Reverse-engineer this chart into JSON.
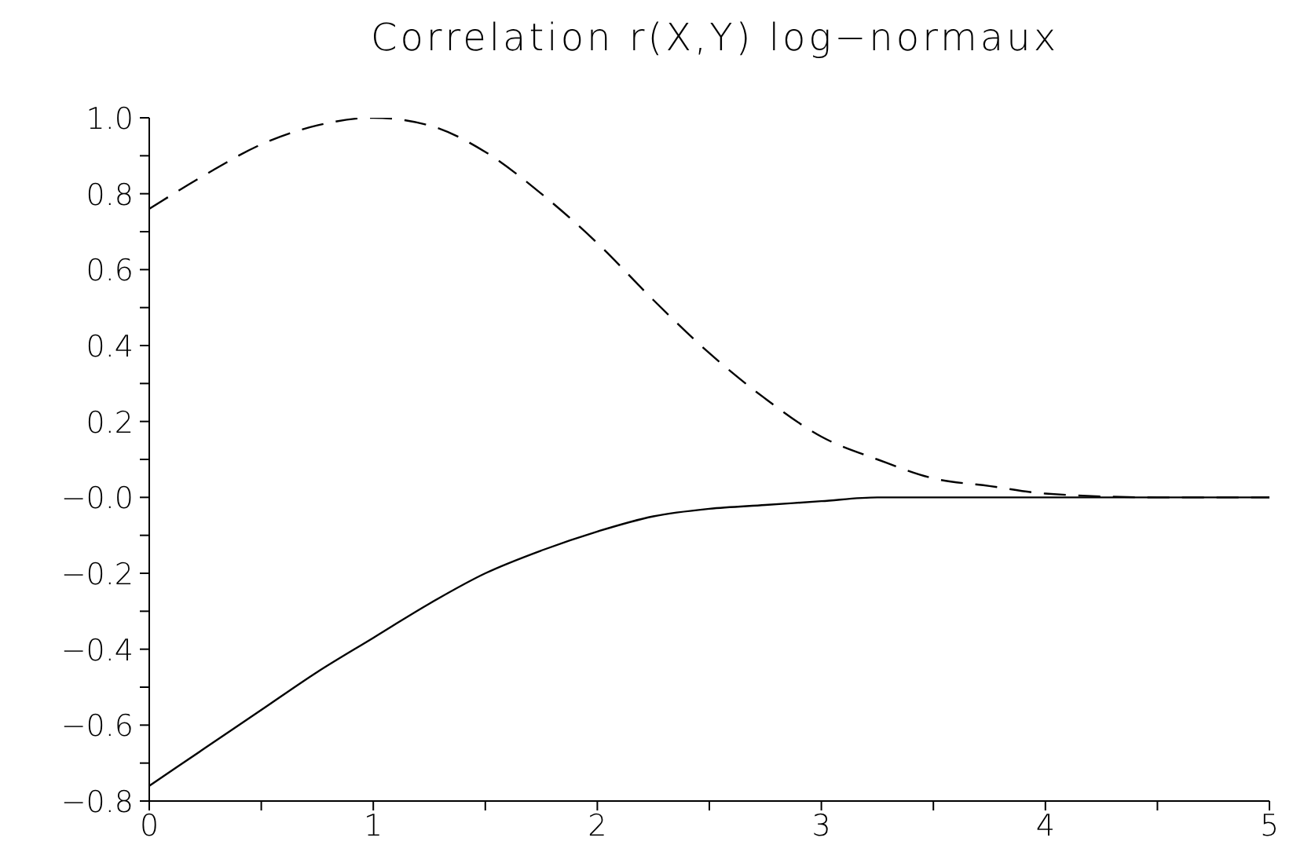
{
  "chart_data": {
    "type": "line",
    "title": "Correlation r(X,Y) log−normaux",
    "x": [
      0,
      0.25,
      0.5,
      0.75,
      1,
      1.25,
      1.5,
      1.75,
      2,
      2.25,
      2.5,
      2.75,
      3,
      3.25,
      3.5,
      3.75,
      4,
      4.5,
      5
    ],
    "series": [
      {
        "color": "#000000",
        "line_style": "dashed",
        "values": [
          0.76,
          0.85,
          0.93,
          0.98,
          1.0,
          0.98,
          0.91,
          0.8,
          0.67,
          0.52,
          0.38,
          0.26,
          0.16,
          0.1,
          0.05,
          0.03,
          0.01,
          0.0,
          0.0
        ]
      },
      {
        "color": "#000000",
        "line_style": "solid",
        "values": [
          -0.76,
          -0.66,
          -0.56,
          -0.46,
          -0.37,
          -0.28,
          -0.2,
          -0.14,
          -0.09,
          -0.05,
          -0.03,
          -0.02,
          -0.01,
          0.0,
          0.0,
          0.0,
          0.0,
          0.0,
          0.0
        ]
      }
    ],
    "xlim": [
      0,
      5
    ],
    "xticks": [
      0,
      {
        "value": 0.5,
        "label": null
      },
      1,
      {
        "value": 1.5,
        "label": null
      },
      2,
      {
        "value": 2.5,
        "label": null
      },
      3,
      {
        "value": 3.5,
        "label": null
      },
      4,
      {
        "value": 4.5,
        "label": null
      },
      5
    ],
    "ylim": [
      -0.8,
      1.0
    ],
    "yticks": [
      {
        "value": -0.8,
        "label": "−0.8"
      },
      {
        "value": -0.7,
        "label": null
      },
      {
        "value": -0.6,
        "label": "−0.6"
      },
      {
        "value": -0.5,
        "label": null
      },
      {
        "value": -0.4,
        "label": "−0.4"
      },
      {
        "value": -0.3,
        "label": null
      },
      {
        "value": -0.2,
        "label": "−0.2"
      },
      {
        "value": -0.1,
        "label": null
      },
      {
        "value": 0,
        "label": "−0.0"
      },
      {
        "value": 0.1,
        "label": null
      },
      {
        "value": 0.2,
        "label": "0.2"
      },
      {
        "value": 0.3,
        "label": null
      },
      {
        "value": 0.4,
        "label": "0.4"
      },
      {
        "value": 0.5,
        "label": null
      },
      {
        "value": 0.6,
        "label": "0.6"
      },
      {
        "value": 0.7,
        "label": null
      },
      {
        "value": 0.8,
        "label": "0.8"
      },
      {
        "value": 0.9,
        "label": null
      },
      {
        "value": 1.0,
        "label": "1.0"
      }
    ],
    "marker": "none",
    "grid": false,
    "legend": false
  }
}
